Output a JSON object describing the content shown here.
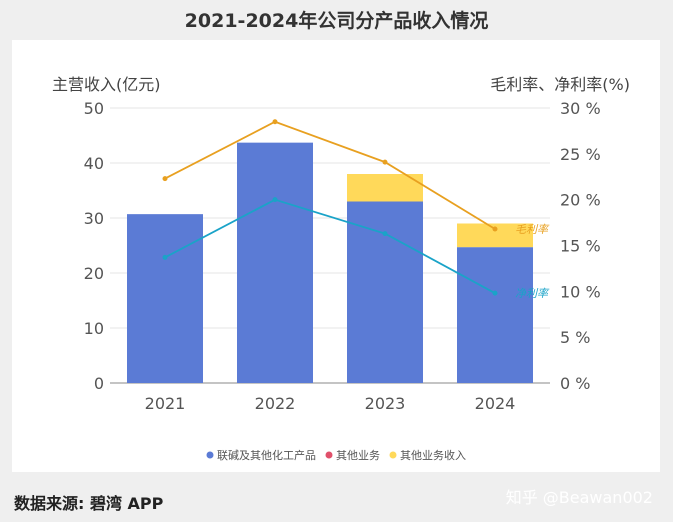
{
  "title": "2021-2024年公司分产品收入情况",
  "source": "数据来源: 碧湾 APP",
  "watermark": "知乎 @Beawan002",
  "colors": {
    "bar_main": "#5b7bd5",
    "bar_other": "#e0506a",
    "bar_other_income": "#ffd95a",
    "line_gross": "#e8a020",
    "line_net": "#1aa3c8"
  },
  "chart_data": {
    "type": "bar",
    "categories": [
      "2021",
      "2022",
      "2023",
      "2024"
    ],
    "ylabel": "主营收入(亿元)",
    "ylabel_right": "毛利率、净利率(%)",
    "ylim": [
      0,
      50
    ],
    "yticks": [
      0,
      10,
      20,
      30,
      40,
      50
    ],
    "ylim_right": [
      0,
      30
    ],
    "yticks_right": [
      "0 %",
      "5 %",
      "10 %",
      "15 %",
      "20 %",
      "25 %",
      "30 %"
    ],
    "series": [
      {
        "name": "联碱及其他化工产品",
        "values": [
          30.7,
          43.7,
          33.0,
          24.7
        ]
      },
      {
        "name": "其他业务",
        "values": [
          0,
          0,
          0,
          0
        ]
      },
      {
        "name": "其他业务收入",
        "values": [
          0,
          0,
          5.0,
          4.3
        ]
      }
    ],
    "lines": [
      {
        "name": "毛利率",
        "values": [
          22.3,
          28.5,
          24.1,
          16.8
        ]
      },
      {
        "name": "净利率",
        "values": [
          13.7,
          20.0,
          16.3,
          9.8
        ]
      }
    ],
    "legend_position": "bottom"
  }
}
